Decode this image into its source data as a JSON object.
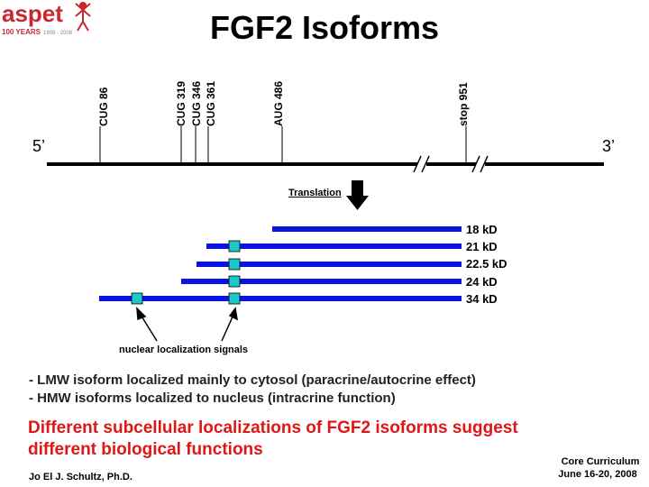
{
  "logo": {
    "wordmark": "aspet",
    "tagline": "100 YEARS",
    "years": "1908 · 2008"
  },
  "title": "FGF2 Isoforms",
  "gene_map": {
    "five_prime": "5’",
    "three_prime": "3’",
    "markers": [
      "CUG 86",
      "CUG 319",
      "CUG 346",
      "CUG 361",
      "AUG 486",
      "stop 951"
    ]
  },
  "translation_label": "Translation",
  "isoforms": [
    "18 kD",
    "21 kD",
    "22.5 kD",
    "24 kD",
    "34 kD"
  ],
  "nls_label": "nuclear localization signals",
  "notes": [
    "- LMW isoform localized mainly to cytosol (paracrine/autocrine effect)",
    "- HMW isoforms localized to nucleus (intracrine function)"
  ],
  "conclusion": [
    "Different subcellular localizations of FGF2 isoforms suggest",
    "different biological functions"
  ],
  "author": "Jo El J. Schultz, Ph.D.",
  "footer": {
    "line1": "Core Curriculum",
    "line2": "June 16-20, 2008"
  },
  "colors": {
    "isoform_bar": "#0a14e0",
    "nls_box": "#1ec8c8",
    "conclusion": "#e01616",
    "logo": "#c8282d"
  }
}
